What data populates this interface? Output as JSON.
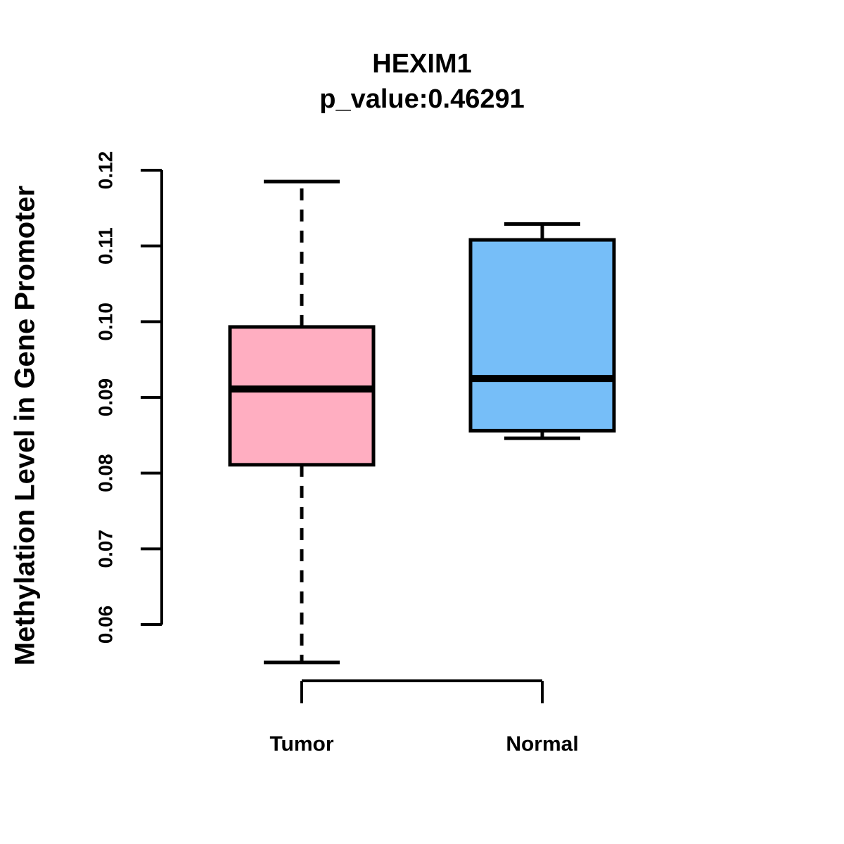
{
  "chart_data": {
    "type": "boxplot",
    "title": "HEXIM1",
    "subtitle": "p_value:0.46291",
    "p_value_label": "p_value:0.46291",
    "ylabel": "Methylation Level in Gene Promoter",
    "categories": [
      "Tumor",
      "Normal"
    ],
    "yticks": [
      {
        "value": 0.06,
        "label": "0.06"
      },
      {
        "value": 0.07,
        "label": "0.07"
      },
      {
        "value": 0.08,
        "label": "0.08"
      },
      {
        "value": 0.09,
        "label": "0.09"
      },
      {
        "value": 0.1,
        "label": "0.10"
      },
      {
        "value": 0.11,
        "label": "0.11"
      },
      {
        "value": 0.12,
        "label": "0.12"
      }
    ],
    "ylim": [
      0.055,
      0.12
    ],
    "grid": false,
    "legend": "none",
    "series": [
      {
        "name": "Tumor",
        "lower_whisker": 0.055,
        "q1": 0.0811,
        "median": 0.0911,
        "q3": 0.0993,
        "upper_whisker": 0.1185,
        "fill": "#ffaec1"
      },
      {
        "name": "Normal",
        "lower_whisker": 0.0846,
        "q1": 0.0856,
        "median": 0.0925,
        "q3": 0.1108,
        "upper_whisker": 0.1129,
        "fill": "#76bef8"
      }
    ]
  },
  "colors": {
    "tumor_fill": "#ffaec1",
    "normal_fill": "#76bef8",
    "stroke": "#000000",
    "text": "#000000",
    "background": "#ffffff"
  }
}
